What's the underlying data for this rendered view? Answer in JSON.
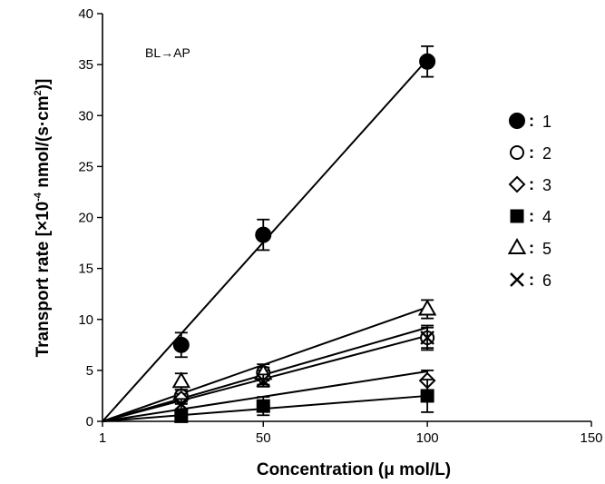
{
  "chart_data": {
    "type": "scatter",
    "title": "",
    "annotation": "BL→AP",
    "xlabel": "Concentration (μ mol/L)",
    "ylabel_prefix": "Transport rate [×10",
    "ylabel_exp": "-4",
    "ylabel_mid": " nmol/(s·cm",
    "ylabel_exp2": "2",
    "ylabel_suffix": ")]",
    "xlim": [
      1,
      150
    ],
    "ylim": [
      0,
      40
    ],
    "xticks": [
      1,
      50,
      100,
      150
    ],
    "yticks": [
      0,
      5,
      10,
      15,
      20,
      25,
      30,
      35,
      40
    ],
    "grid": false,
    "legend_position": "right",
    "legend_separator": ":",
    "series": [
      {
        "name": "1",
        "marker": "filled-circle",
        "x": [
          25,
          50,
          100
        ],
        "y": [
          7.5,
          18.3,
          35.3
        ],
        "err": [
          1.2,
          1.5,
          1.5
        ],
        "fit": [
          [
            1,
            0
          ],
          [
            100,
            35.5
          ]
        ]
      },
      {
        "name": "2",
        "marker": "open-circle",
        "x": [
          25,
          50,
          100
        ],
        "y": [
          2.5,
          4.8,
          8.2
        ],
        "err": [
          0.6,
          0.8,
          1.2
        ],
        "fit": [
          [
            1,
            0
          ],
          [
            100,
            9.2
          ]
        ]
      },
      {
        "name": "3",
        "marker": "open-diamond",
        "x": [
          25,
          50,
          100
        ],
        "y": [
          2.2,
          4.3,
          4.0
        ],
        "err": [
          0.5,
          0.7,
          1.0
        ],
        "fit": [
          [
            1,
            0
          ],
          [
            100,
            4.9
          ]
        ]
      },
      {
        "name": "4",
        "marker": "filled-square",
        "x": [
          25,
          50,
          100
        ],
        "y": [
          0.5,
          1.5,
          2.5
        ],
        "err": [
          0.3,
          0.9,
          1.6
        ],
        "fit": [
          [
            1,
            0
          ],
          [
            100,
            2.5
          ]
        ]
      },
      {
        "name": "5",
        "marker": "open-triangle",
        "x": [
          25,
          50,
          100
        ],
        "y": [
          3.9,
          4.7,
          11.0
        ],
        "err": [
          0.8,
          0.6,
          0.9
        ],
        "fit": [
          [
            1,
            0
          ],
          [
            100,
            11.2
          ]
        ]
      },
      {
        "name": "6",
        "marker": "x-cross",
        "x": [
          25,
          50,
          100
        ],
        "y": [
          1.7,
          4.0,
          8.2
        ],
        "err": [
          0.5,
          0.6,
          1.0
        ],
        "fit": [
          [
            1,
            0
          ],
          [
            100,
            8.4
          ]
        ]
      }
    ]
  }
}
